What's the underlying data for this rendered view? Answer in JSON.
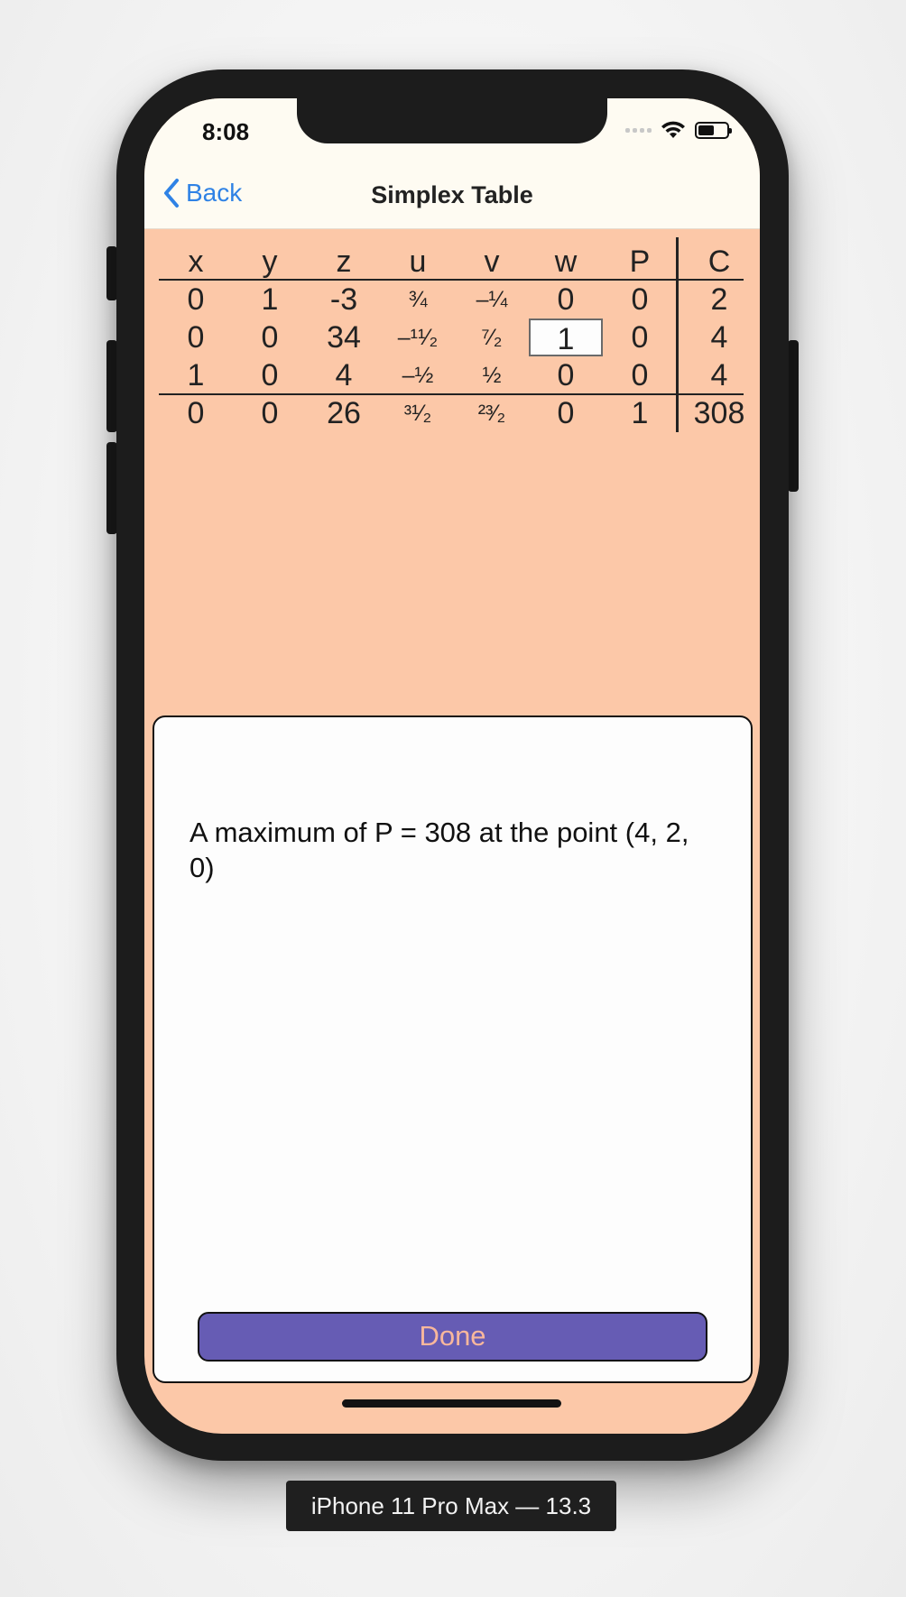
{
  "status_bar": {
    "time": "8:08",
    "icons": [
      "cellular-signal-icon",
      "wifi-icon",
      "battery-icon"
    ]
  },
  "nav": {
    "back_label": "Back",
    "title": "Simplex Table"
  },
  "table": {
    "headers": [
      "x",
      "y",
      "z",
      "u",
      "v",
      "w",
      "P",
      "C"
    ],
    "rows": [
      [
        "0",
        "1",
        "-3",
        "¾",
        "–¼",
        "0",
        "0",
        "2"
      ],
      [
        "0",
        "0",
        "34",
        "–¹¹⁄₂",
        "⁷⁄₂",
        "1",
        "0",
        "4"
      ],
      [
        "1",
        "0",
        "4",
        "–½",
        "½",
        "0",
        "0",
        "4"
      ],
      [
        "0",
        "0",
        "26",
        "³¹⁄₂",
        "²³⁄₂",
        "0",
        "1",
        "308"
      ]
    ],
    "highlighted_cell": {
      "row": 1,
      "col": 5
    }
  },
  "dialog": {
    "message": "A maximum of P = 308 at the point (4, 2, 0)",
    "done_label": "Done"
  },
  "device_label": "iPhone 11 Pro Max — 13.3",
  "colors": {
    "background": "#fcc8a8",
    "nav_bar": "#fefbf2",
    "accent": "#2f82e5",
    "done_button": "#665cb4",
    "done_text": "#f8b79c"
  }
}
